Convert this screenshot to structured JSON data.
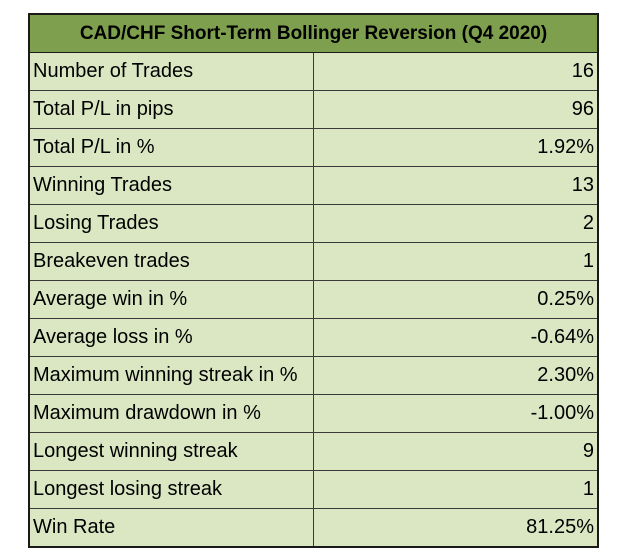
{
  "title": "CAD/CHF Short-Term Bollinger Reversion (Q4 2020)",
  "colors": {
    "header_bg": "#7ea04e",
    "row_bg": "#dbe7c3"
  },
  "rows": [
    {
      "label": "Number of Trades",
      "value": "16"
    },
    {
      "label": "Total P/L in pips",
      "value": "96"
    },
    {
      "label": "Total P/L in %",
      "value": "1.92%"
    },
    {
      "label": "Winning Trades",
      "value": "13"
    },
    {
      "label": "Losing Trades",
      "value": "2"
    },
    {
      "label": "Breakeven trades",
      "value": "1"
    },
    {
      "label": "Average win in %",
      "value": "0.25%"
    },
    {
      "label": "Average loss in %",
      "value": "-0.64%"
    },
    {
      "label": "Maximum winning streak in %",
      "value": "2.30%"
    },
    {
      "label": "Maximum drawdown in %",
      "value": "-1.00%"
    },
    {
      "label": "Longest winning streak",
      "value": "9"
    },
    {
      "label": "Longest losing streak",
      "value": "1"
    },
    {
      "label": "Win Rate",
      "value": "81.25%"
    }
  ]
}
